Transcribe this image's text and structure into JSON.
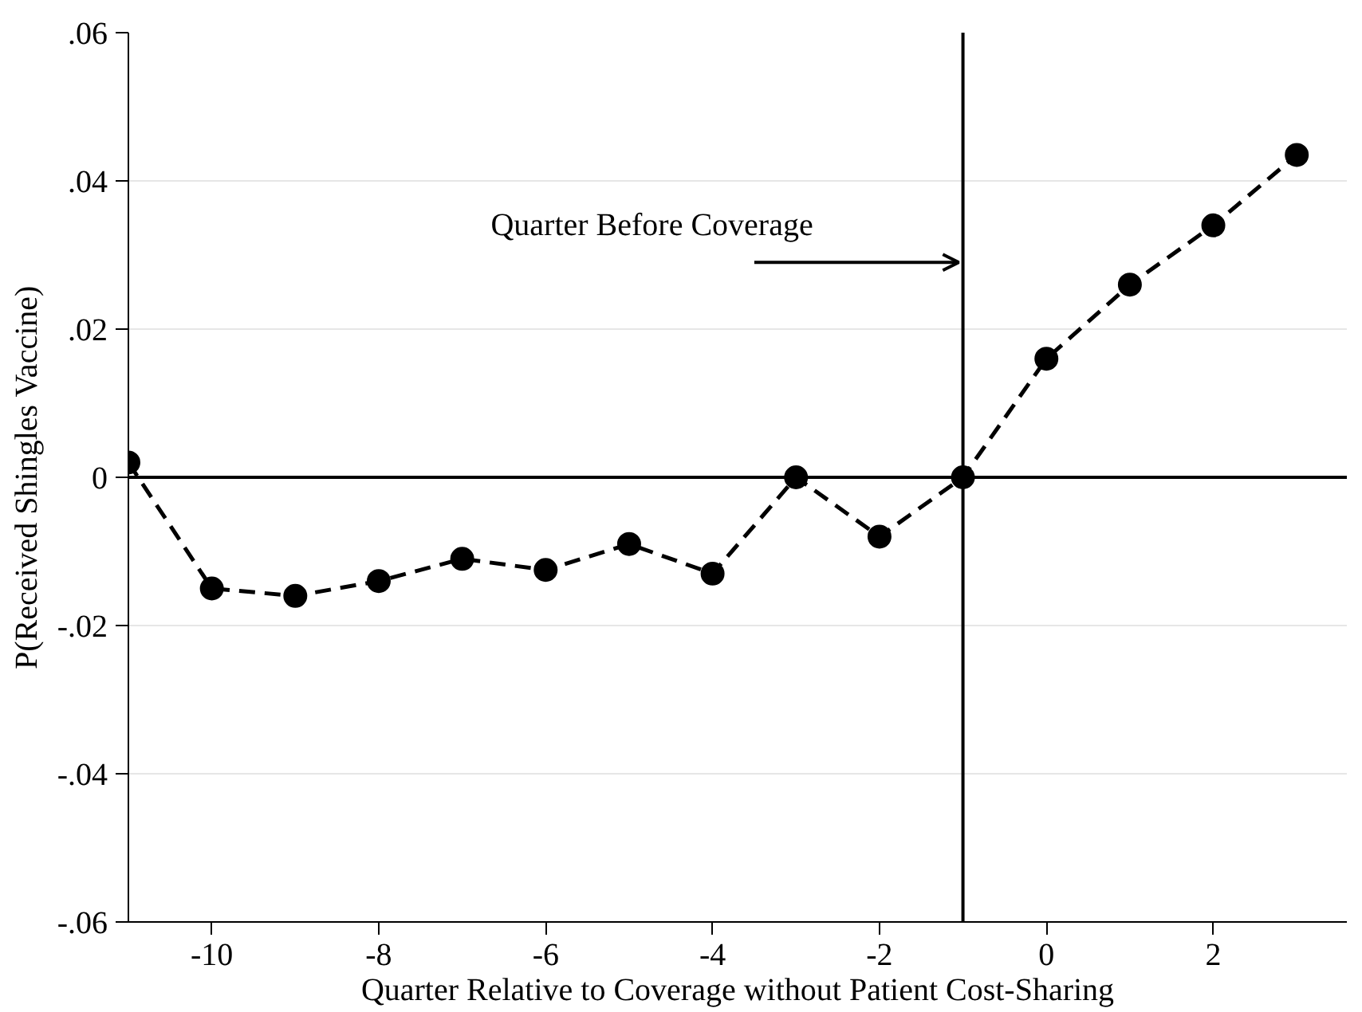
{
  "chart_data": {
    "type": "line",
    "xlabel": "Quarter Relative to Coverage without Patient Cost-Sharing",
    "ylabel": "P(Received Shingles Vaccine)",
    "x": [
      -11,
      -10,
      -9,
      -8,
      -7,
      -6,
      -5,
      -4,
      -3,
      -2,
      -1,
      0,
      1,
      2,
      3
    ],
    "series": [
      {
        "color": "#000000",
        "values": [
          0.002,
          -0.015,
          -0.016,
          -0.014,
          -0.011,
          -0.0125,
          -0.009,
          -0.013,
          0,
          -0.008,
          0,
          0.016,
          0.026,
          0.034,
          0.0435
        ]
      }
    ],
    "marker": "circle",
    "line_style": "dashed",
    "grid": "y",
    "xlim": [
      -11,
      3.6
    ],
    "ylim": [
      -0.06,
      0.06
    ],
    "xticks": [
      -10,
      -8,
      -6,
      -4,
      -2,
      0,
      2
    ],
    "yticks": [
      {
        "value": 0.06,
        "label": ".06"
      },
      {
        "value": 0.04,
        "label": ".04"
      },
      {
        "value": 0.02,
        "label": ".02"
      },
      0,
      {
        "value": -0.02,
        "label": "-.02"
      },
      {
        "value": -0.04,
        "label": "-.04"
      },
      {
        "value": -0.06,
        "label": "-.06"
      }
    ],
    "ref_lines": [
      {
        "axis": "y",
        "value": 0,
        "color": "#000000"
      },
      {
        "axis": "x",
        "value": -1,
        "color": "#000000"
      }
    ],
    "annotations": [
      {
        "text": "Quarter Before Coverage",
        "x": -1,
        "y": 0.029
      }
    ]
  }
}
